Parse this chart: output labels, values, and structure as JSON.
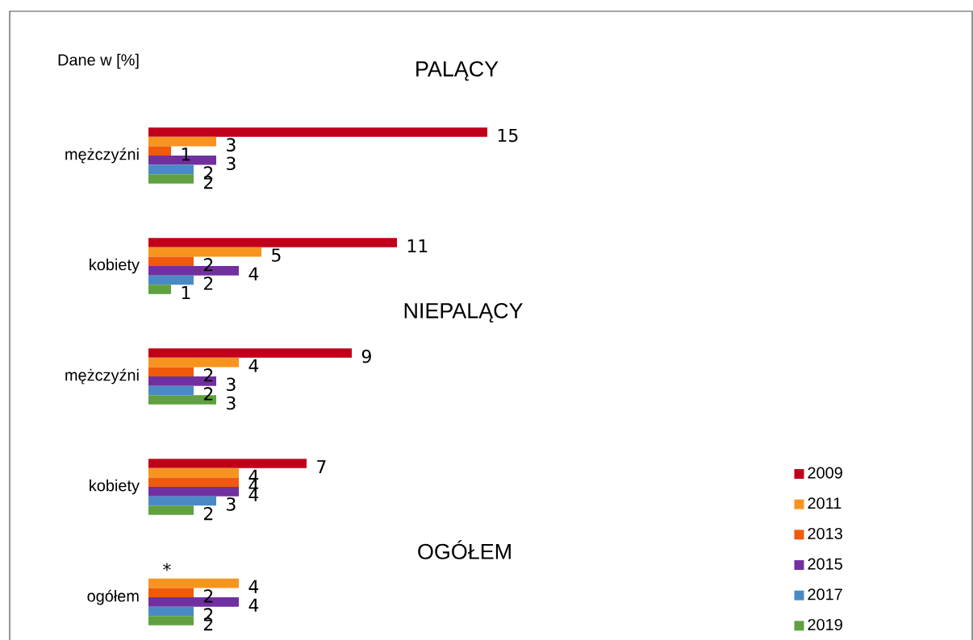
{
  "chart_data": {
    "type": "bar",
    "orientation": "horizontal",
    "legend": "bottom right",
    "categories": [
      "mężczyźni",
      "kobiety",
      "mężczyźni",
      "kobiety",
      "ogółem"
    ],
    "annotations": [
      "Dane w [%]",
      "PALĄCY",
      "NIEPALĄCY",
      "OGÓŁEM"
    ],
    "series": [
      {
        "name": "2009",
        "color": "#c0001a",
        "values": [
          15,
          11,
          9,
          7,
          null
        ],
        "value_labels": [
          "15",
          "11",
          "9",
          "7",
          "*"
        ]
      },
      {
        "name": "2011",
        "color": "#f79420",
        "values": [
          3,
          5,
          4,
          4,
          4
        ],
        "value_labels": [
          "3",
          "5",
          "4",
          "4",
          "4"
        ]
      },
      {
        "name": "2013",
        "color": "#f05a0a",
        "values": [
          1,
          2,
          2,
          4,
          2
        ],
        "value_labels": [
          "1",
          "2",
          "2",
          "4",
          "2"
        ]
      },
      {
        "name": "2015",
        "color": "#7030a0",
        "values": [
          3,
          4,
          3,
          4,
          4
        ],
        "value_labels": [
          "3",
          "4",
          "3",
          "4",
          "4"
        ]
      },
      {
        "name": "2017",
        "color": "#4a8ac4",
        "values": [
          2,
          2,
          2,
          3,
          2
        ],
        "value_labels": [
          "2",
          "2",
          "2",
          "3",
          "2"
        ]
      },
      {
        "name": "2019",
        "color": "#60a040",
        "values": [
          2,
          1,
          3,
          2,
          2
        ],
        "value_labels": [
          "2",
          "1",
          "3",
          "2",
          "2"
        ]
      }
    ]
  }
}
